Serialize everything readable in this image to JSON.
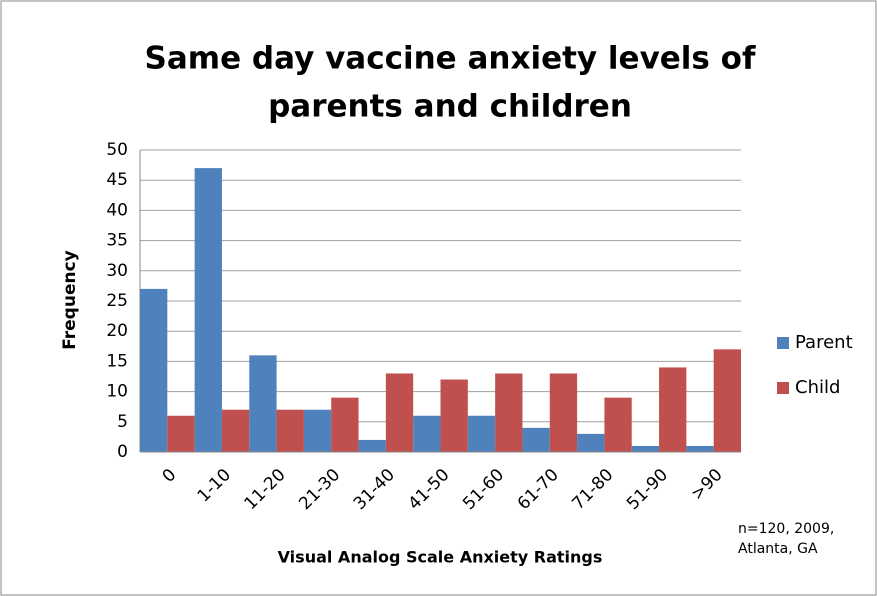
{
  "chart_data": {
    "type": "bar",
    "title": [
      "Same day vaccine anxiety levels of",
      "parents and children"
    ],
    "x_label": "Visual Analog Scale Anxiety Ratings",
    "y_label": "Frequency",
    "annotation": [
      "n=120, 2009,",
      "Atlanta, GA"
    ],
    "categories": [
      "0",
      "1-10",
      "11-20",
      "21-30",
      "31-40",
      "41-50",
      "51-60",
      "61-70",
      "71-80",
      "51-90",
      ">90"
    ],
    "series": [
      {
        "name": "Parent",
        "color": "#4f81bd",
        "values": [
          27,
          47,
          16,
          7,
          2,
          6,
          6,
          4,
          3,
          1,
          1
        ]
      },
      {
        "name": "Child",
        "color": "#c0504d",
        "values": [
          6,
          7,
          7,
          9,
          13,
          12,
          13,
          13,
          9,
          14,
          17
        ]
      }
    ],
    "ylim": [
      0,
      50
    ],
    "yticks": [
      0,
      5,
      10,
      15,
      20,
      25,
      30,
      35,
      40,
      45,
      50
    ],
    "grid": true,
    "legend": "right"
  }
}
